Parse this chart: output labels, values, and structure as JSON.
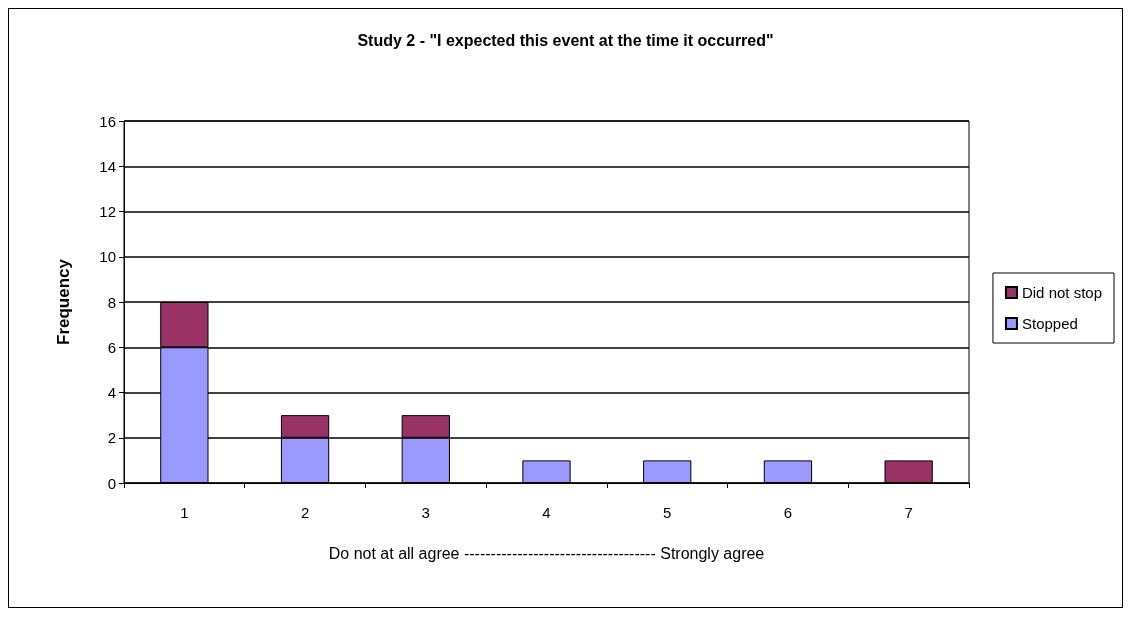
{
  "chart_data": {
    "type": "bar",
    "title": "Study 2 - \"I expected this event at the time it occurred\"",
    "xlabel": "Do not at all agree ------------------------------------ Strongly agree",
    "ylabel": "Frequency",
    "categories": [
      "1",
      "2",
      "3",
      "4",
      "5",
      "6",
      "7"
    ],
    "series": [
      {
        "name": "Stopped",
        "color": "#9999ff",
        "values": [
          6,
          2,
          2,
          1,
          1,
          1,
          0
        ]
      },
      {
        "name": "Did not stop",
        "color": "#993366",
        "values": [
          2,
          1,
          1,
          0,
          0,
          0,
          1
        ]
      }
    ],
    "stacked": true,
    "ylim": [
      0,
      16
    ],
    "yticks": [
      0,
      2,
      4,
      6,
      8,
      10,
      12,
      14,
      16
    ],
    "grid": "y",
    "legend": "right"
  }
}
